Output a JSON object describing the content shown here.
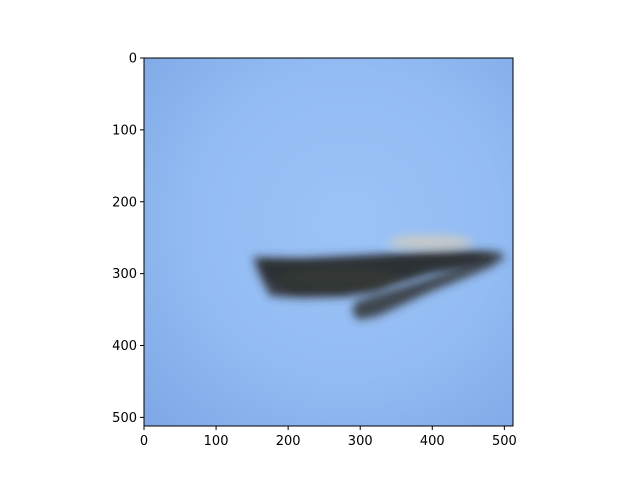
{
  "figure": {
    "x_ticks": [
      "0",
      "100",
      "200",
      "300",
      "400",
      "500"
    ],
    "y_ticks": [
      "0",
      "100",
      "200",
      "300",
      "400",
      "500"
    ],
    "x_tick_values": [
      0,
      100,
      200,
      300,
      400,
      500
    ],
    "y_tick_values": [
      0,
      100,
      200,
      300,
      400,
      500
    ],
    "xlim": [
      0,
      512
    ],
    "ylim": [
      512,
      0
    ]
  },
  "image": {
    "subject": "blurred-aircraft-in-blue-sky",
    "sky_color_center": "#94BDF5",
    "sky_color_edge": "#7DA8E6",
    "object_color": "#3A3A3A",
    "object_highlight_color": "#CFC6B3"
  }
}
